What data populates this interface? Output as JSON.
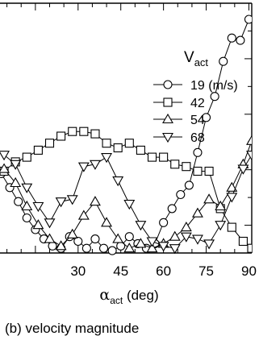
{
  "chart_data": {
    "type": "line",
    "xlabel": "α_act (deg)",
    "xlabel_symbol": "α",
    "xlabel_sub": "act",
    "xlabel_unit": "(deg)",
    "x_ticks": [
      30,
      45,
      60,
      75,
      90
    ],
    "x_tick_labels": [
      "30",
      "45",
      "60",
      "75",
      "90"
    ],
    "xlim": [
      2,
      91
    ],
    "ylim": [
      0,
      1
    ],
    "grid": false,
    "legend_placement": "top-right",
    "legend_title": "V",
    "legend_title_sub": "act",
    "caption": "(b) velocity magnitude",
    "series": [
      {
        "name": "19 (m/s)",
        "marker": "circle",
        "x": [
          3,
          6,
          9,
          12,
          15,
          18,
          21,
          24,
          27,
          30,
          33,
          36,
          39,
          42,
          45,
          48,
          51,
          54,
          57,
          60,
          63,
          66,
          69,
          72,
          75,
          78,
          81,
          84,
          87,
          90
        ],
        "y": [
          0.34,
          0.28,
          0.22,
          0.15,
          0.1,
          0.06,
          0.03,
          0.02,
          0.07,
          0.05,
          0.02,
          0.06,
          0.02,
          0.01,
          0.03,
          0.07,
          0.04,
          0.02,
          0.04,
          0.13,
          0.19,
          0.25,
          0.29,
          0.43,
          0.58,
          0.67,
          0.82,
          0.92,
          0.91,
          1.0
        ]
      },
      {
        "name": "42",
        "marker": "square",
        "x": [
          4,
          8,
          12,
          16,
          20,
          24,
          28,
          32,
          36,
          40,
          44,
          48,
          52,
          56,
          60,
          64,
          68,
          72,
          76,
          80,
          84,
          88,
          91
        ],
        "y": [
          0.35,
          0.39,
          0.41,
          0.44,
          0.47,
          0.5,
          0.52,
          0.52,
          0.51,
          0.47,
          0.45,
          0.47,
          0.44,
          0.41,
          0.41,
          0.38,
          0.37,
          0.35,
          0.35,
          0.19,
          0.11,
          0.05,
          0.02
        ]
      },
      {
        "name": "54",
        "marker": "triangle-up",
        "x": [
          4,
          8,
          12,
          16,
          20,
          24,
          28,
          32,
          36,
          40,
          44,
          48,
          52,
          56,
          60,
          64,
          68,
          72,
          76,
          80,
          84,
          88,
          91
        ],
        "y": [
          0.36,
          0.3,
          0.2,
          0.12,
          0.06,
          0.03,
          0.08,
          0.16,
          0.22,
          0.13,
          0.06,
          0.02,
          0.04,
          0.02,
          0.04,
          0.07,
          0.11,
          0.17,
          0.23,
          0.2,
          0.28,
          0.38,
          0.48
        ]
      },
      {
        "name": "68",
        "marker": "triangle-down",
        "x": [
          4,
          8,
          12,
          16,
          20,
          24,
          28,
          32,
          36,
          40,
          44,
          48,
          52,
          56,
          60,
          64,
          68,
          72,
          76,
          80,
          84,
          88,
          91
        ],
        "y": [
          0.42,
          0.38,
          0.28,
          0.2,
          0.13,
          0.22,
          0.23,
          0.37,
          0.38,
          0.41,
          0.31,
          0.21,
          0.12,
          0.05,
          0.03,
          0.02,
          0.07,
          0.06,
          0.04,
          0.12,
          0.24,
          0.36,
          0.42
        ]
      }
    ]
  }
}
